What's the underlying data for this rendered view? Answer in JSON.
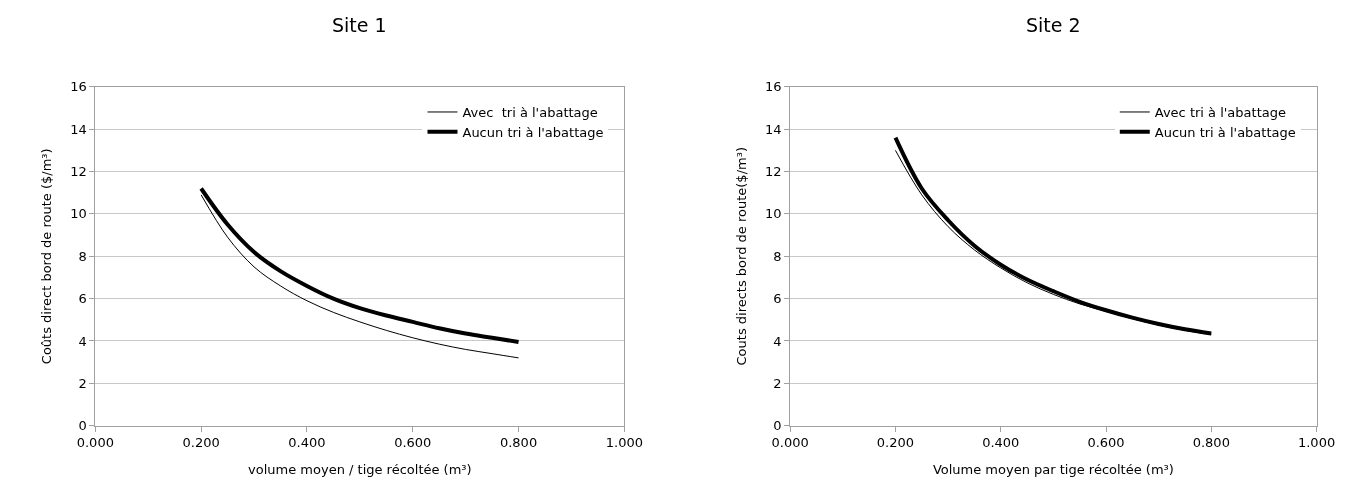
{
  "chart_data": [
    {
      "type": "line",
      "title": "Site 1",
      "xlabel": "volume moyen / tige récoltée (m³)",
      "ylabel": "Coûts direct bord de route ($/m³)",
      "x": [
        0.2,
        0.25,
        0.3,
        0.35,
        0.4,
        0.45,
        0.5,
        0.55,
        0.6,
        0.65,
        0.7,
        0.75,
        0.8
      ],
      "series": [
        {
          "name": "Avec  tri à l'abattage",
          "color": "#000000",
          "values": [
            10.9,
            8.9,
            7.5,
            6.6,
            5.9,
            5.35,
            4.9,
            4.5,
            4.15,
            3.85,
            3.6,
            3.4,
            3.2
          ]
        },
        {
          "name": "Aucun tri à l'abattage",
          "color": "#000000",
          "values": [
            11.2,
            9.5,
            8.2,
            7.3,
            6.6,
            6.0,
            5.55,
            5.2,
            4.9,
            4.6,
            4.35,
            4.15,
            3.95
          ]
        }
      ],
      "xlim": [
        0,
        1
      ],
      "xticks": [
        {
          "value": 0,
          "label": "0.000"
        },
        {
          "value": 0.2,
          "label": "0.200"
        },
        {
          "value": 0.4,
          "label": "0.400"
        },
        {
          "value": 0.6,
          "label": "0.600"
        },
        {
          "value": 0.8,
          "label": "0.800"
        },
        {
          "value": 1,
          "label": "1.000"
        }
      ],
      "ylim": [
        0,
        16
      ],
      "yticks": [
        0,
        2,
        4,
        6,
        8,
        10,
        12,
        14,
        16
      ],
      "grid": "y",
      "legend": "top right",
      "marker": "none",
      "line_style": "solid"
    },
    {
      "type": "line",
      "title": "Site 2",
      "xlabel": "Volume moyen par tige récoltée (m³)",
      "ylabel": "Couts directs bord de route($/m³)",
      "x": [
        0.2,
        0.25,
        0.3,
        0.35,
        0.4,
        0.45,
        0.5,
        0.55,
        0.6,
        0.65,
        0.7,
        0.75,
        0.8
      ],
      "series": [
        {
          "name": "Avec tri à l'abattage",
          "color": "#000000",
          "values": [
            13.0,
            10.9,
            9.4,
            8.3,
            7.45,
            6.75,
            6.2,
            5.75,
            5.4,
            5.05,
            4.75,
            4.5,
            4.3
          ]
        },
        {
          "name": "Aucun tri à l'abattage",
          "color": "#000000",
          "values": [
            13.6,
            11.2,
            9.7,
            8.5,
            7.6,
            6.9,
            6.35,
            5.85,
            5.45,
            5.1,
            4.8,
            4.55,
            4.35
          ]
        }
      ],
      "xlim": [
        0,
        1
      ],
      "xticks": [
        {
          "value": 0,
          "label": "0.000"
        },
        {
          "value": 0.2,
          "label": "0.200"
        },
        {
          "value": 0.4,
          "label": "0.400"
        },
        {
          "value": 0.6,
          "label": "0.600"
        },
        {
          "value": 0.8,
          "label": "0.800"
        },
        {
          "value": 1,
          "label": "1.000"
        }
      ],
      "ylim": [
        0,
        16
      ],
      "yticks": [
        0,
        2,
        4,
        6,
        8,
        10,
        12,
        14,
        16
      ],
      "grid": "y",
      "legend": "top right",
      "marker": "none",
      "line_style": "solid"
    }
  ]
}
